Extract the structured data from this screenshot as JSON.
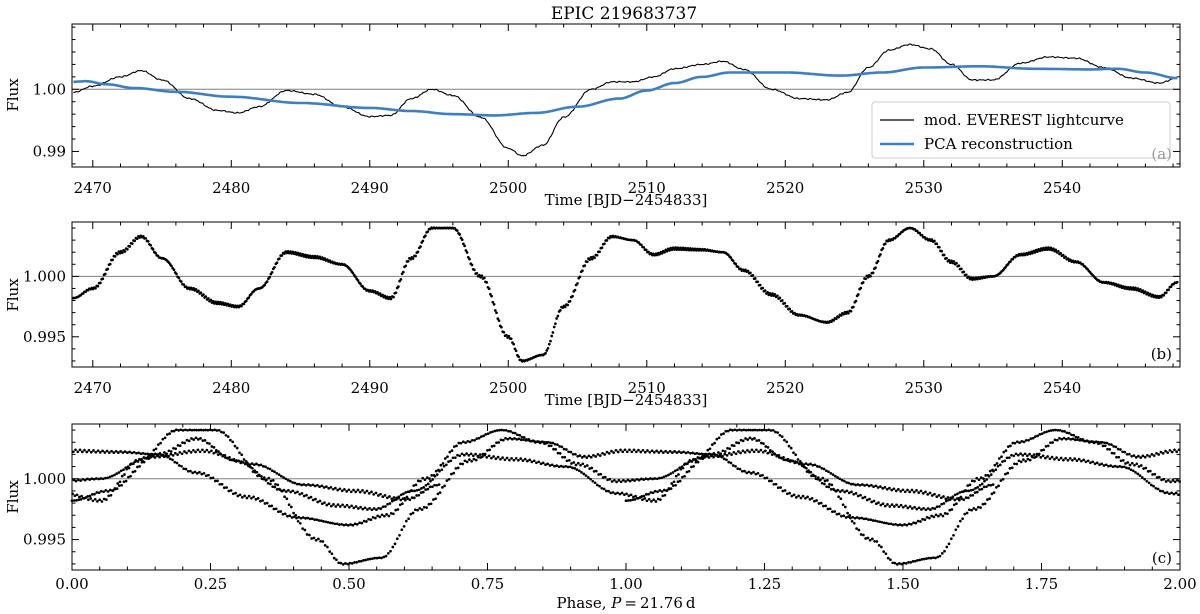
{
  "chart_data": [
    {
      "panel": "(a)",
      "type": "line",
      "title": "EPIC 219683737",
      "xlabel": "Time [BJD−2454833]",
      "ylabel": "Flux",
      "xlim": [
        2468.5,
        2548.5
      ],
      "ylim": [
        0.9875,
        1.0105
      ],
      "xticks": [
        2470,
        2480,
        2490,
        2500,
        2510,
        2520,
        2530,
        2540
      ],
      "yticks": [
        0.99,
        1.0
      ],
      "ytick_labels": [
        "0.99",
        "1.00"
      ],
      "reference_line": 1.0,
      "legend_position": "lower-right",
      "series": [
        {
          "name": "mod. EVEREST lightcurve",
          "color": "#000000",
          "x": [
            2468.6,
            2470,
            2472,
            2473.5,
            2475,
            2477,
            2479,
            2480.5,
            2482,
            2484,
            2486,
            2488,
            2490,
            2491.5,
            2493,
            2494.5,
            2496,
            2498,
            2500,
            2501,
            2502.5,
            2504,
            2506,
            2507.5,
            2509,
            2510.5,
            2512,
            2514,
            2515.5,
            2517,
            2519,
            2521,
            2523,
            2524.5,
            2526,
            2527.5,
            2529,
            2530.5,
            2532,
            2533.5,
            2535,
            2537,
            2539,
            2541,
            2543,
            2545,
            2547,
            2548.3
          ],
          "y": [
            0.9995,
            1.0005,
            1.002,
            1.003,
            1.0015,
            0.9985,
            0.9966,
            0.9962,
            0.9972,
            0.9998,
            0.9992,
            0.9972,
            0.9956,
            0.9958,
            0.9985,
            1.0,
            0.999,
            0.9955,
            0.9905,
            0.9893,
            0.991,
            0.9955,
            1.0,
            1.0012,
            1.0012,
            1.002,
            1.0033,
            1.004,
            1.0045,
            1.0032,
            1.0,
            0.9985,
            0.9983,
            0.9995,
            1.0035,
            1.0063,
            1.0072,
            1.0065,
            1.004,
            1.0015,
            1.0015,
            1.0042,
            1.0052,
            1.005,
            1.0035,
            1.0018,
            1.001,
            1.0018
          ]
        },
        {
          "name": "PCA reconstruction",
          "color": "#3f7fbf",
          "x": [
            2468.6,
            2469.5,
            2471,
            2473,
            2476,
            2480,
            2485,
            2490,
            2493,
            2496,
            2499,
            2502,
            2505,
            2508,
            2510,
            2512,
            2514,
            2516,
            2520,
            2524,
            2527,
            2530,
            2534,
            2538,
            2542,
            2544,
            2546,
            2548.3
          ],
          "y": [
            1.0012,
            1.0013,
            1.0008,
            1.0002,
            0.9996,
            0.9988,
            0.9978,
            0.997,
            0.9965,
            0.996,
            0.9958,
            0.9962,
            0.9972,
            0.9985,
            0.9998,
            1.001,
            1.002,
            1.0027,
            1.0027,
            1.0022,
            1.0027,
            1.0035,
            1.0037,
            1.0033,
            1.0032,
            1.0033,
            1.0027,
            1.0018
          ]
        }
      ]
    },
    {
      "panel": "(b)",
      "type": "scatter",
      "xlabel": "Time [BJD−2454833]",
      "ylabel": "Flux",
      "xlim": [
        2468.5,
        2548.5
      ],
      "ylim": [
        0.9925,
        1.0045
      ],
      "xticks": [
        2470,
        2480,
        2490,
        2500,
        2510,
        2520,
        2530,
        2540
      ],
      "yticks": [
        0.995,
        1.0
      ],
      "ytick_labels": [
        "0.995",
        "1.000"
      ],
      "reference_line": 1.0,
      "series": [
        {
          "color": "#000000",
          "x": [
            2468.6,
            2470,
            2472,
            2473.5,
            2475,
            2477,
            2479,
            2480.5,
            2482,
            2484,
            2486,
            2488,
            2490,
            2491.5,
            2493,
            2494.5,
            2496,
            2498,
            2500,
            2501,
            2502.5,
            2504,
            2506,
            2507.5,
            2509,
            2510.5,
            2512,
            2514,
            2515.5,
            2517,
            2519,
            2521,
            2523,
            2524.5,
            2526,
            2527.5,
            2529,
            2530.5,
            2532,
            2533.5,
            2535,
            2537,
            2539,
            2541,
            2543,
            2545,
            2547,
            2548.3
          ],
          "y": [
            0.9982,
            0.999,
            1.002,
            1.0033,
            1.0015,
            0.999,
            0.9978,
            0.9975,
            0.999,
            1.002,
            1.0016,
            1.001,
            0.9988,
            0.9982,
            1.0015,
            1.004,
            1.004,
            1.0,
            0.995,
            0.993,
            0.9935,
            0.9975,
            1.0015,
            1.0033,
            1.003,
            1.0018,
            1.0023,
            1.0022,
            1.002,
            1.0005,
            0.9985,
            0.9968,
            0.9962,
            0.997,
            1.0,
            1.003,
            1.004,
            1.003,
            1.0012,
            0.9998,
            1.0,
            1.0018,
            1.0023,
            1.0012,
            0.9995,
            0.999,
            0.9983,
            0.9995
          ]
        }
      ]
    },
    {
      "panel": "(c)",
      "type": "scatter",
      "xlabel": "Phase, P = 21.76 d",
      "ylabel": "Flux",
      "xlim": [
        0.0,
        2.0
      ],
      "ylim": [
        0.9925,
        1.0045
      ],
      "xticks": [
        0.0,
        0.25,
        0.5,
        0.75,
        1.0,
        1.25,
        1.5,
        1.75,
        2.0
      ],
      "xtick_labels": [
        "0.00",
        "0.25",
        "0.50",
        "0.75",
        "1.00",
        "1.25",
        "1.50",
        "1.75",
        "2.00"
      ],
      "yticks": [
        0.995,
        1.0
      ],
      "ytick_labels": [
        "0.995",
        "1.000"
      ],
      "reference_line": 1.0,
      "period_days": 21.76,
      "folded_from": "(b)"
    }
  ],
  "annotations": {
    "panel_a": "(a)",
    "panel_b": "(b)",
    "panel_c": "(c)"
  }
}
